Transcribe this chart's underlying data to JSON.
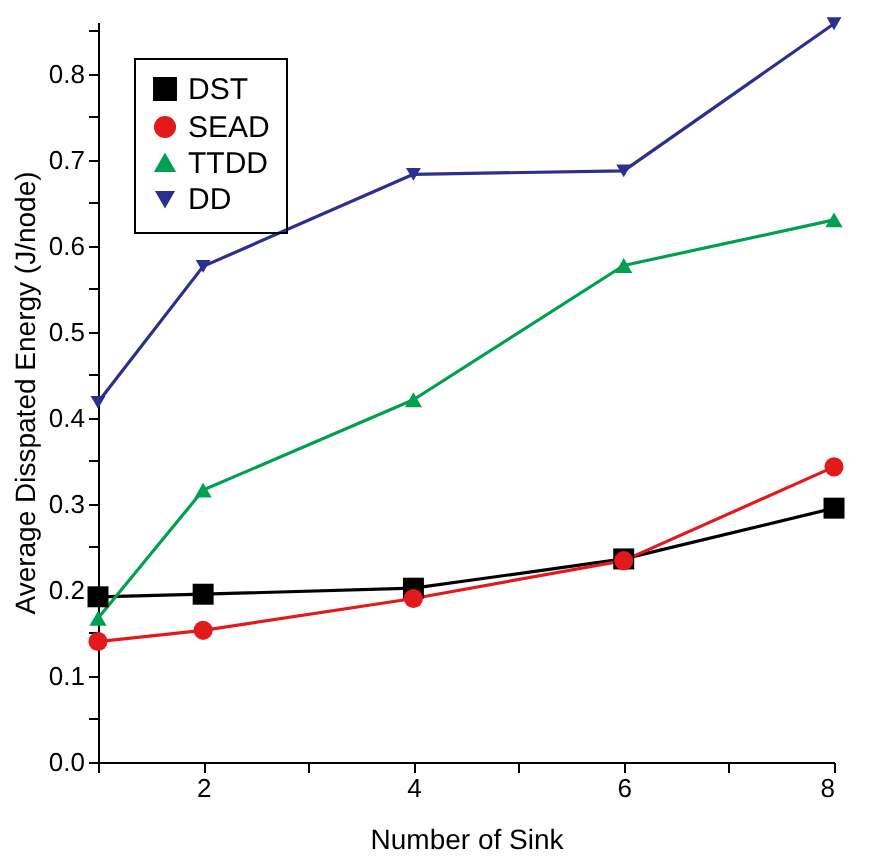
{
  "chart_data": {
    "type": "line",
    "xlabel": "Number of Sink",
    "ylabel": "Average Disspated Energy (J/node)",
    "x": [
      1,
      2,
      4,
      6,
      8
    ],
    "series": [
      {
        "name": "DST",
        "color": "#000000",
        "marker": "square",
        "values": [
          0.192,
          0.195,
          0.202,
          0.236,
          0.295
        ]
      },
      {
        "name": "SEAD",
        "color": "#e31a1c",
        "marker": "circle",
        "values": [
          0.14,
          0.153,
          0.19,
          0.234,
          0.343
        ]
      },
      {
        "name": "TTDD",
        "color": "#00a050",
        "marker": "triangle",
        "values": [
          0.167,
          0.316,
          0.421,
          0.577,
          0.63
        ]
      },
      {
        "name": "DD",
        "color": "#2b2f8e",
        "marker": "triangle-down",
        "values": [
          0.418,
          0.576,
          0.683,
          0.687,
          0.858
        ]
      }
    ],
    "xlim": [
      1,
      8
    ],
    "xticks": [
      {
        "value": 1,
        "label": null
      },
      2,
      {
        "value": 3,
        "label": null
      },
      4,
      {
        "value": 5,
        "label": null
      },
      6,
      {
        "value": 7,
        "label": null
      },
      8
    ],
    "ylim": [
      0,
      0.86
    ],
    "yticks": [
      {
        "value": 0,
        "label": "0.0"
      },
      {
        "value": 0.05,
        "label": null
      },
      0.1,
      {
        "value": 0.15,
        "label": null
      },
      0.2,
      {
        "value": 0.25,
        "label": null
      },
      0.3,
      {
        "value": 0.35,
        "label": null
      },
      0.4,
      {
        "value": 0.45,
        "label": null
      },
      0.5,
      {
        "value": 0.55,
        "label": null
      },
      0.6,
      {
        "value": 0.65,
        "label": null
      },
      0.7,
      {
        "value": 0.75,
        "label": null
      },
      0.8,
      {
        "value": 0.85,
        "label": null
      }
    ],
    "grid": false,
    "legend": "top left",
    "line_style": "solid"
  }
}
